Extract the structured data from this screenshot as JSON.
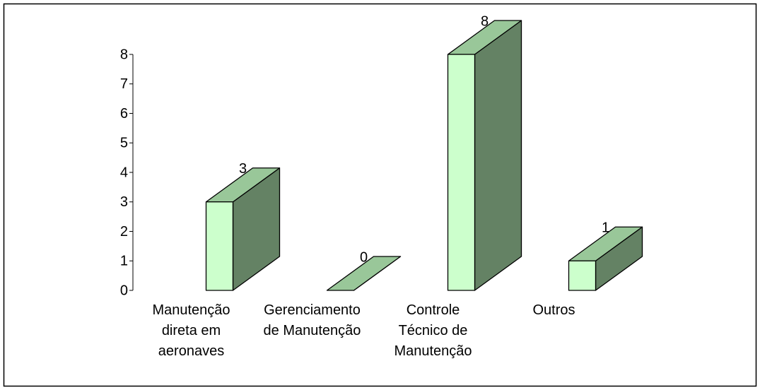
{
  "chart_data": {
    "type": "bar3d",
    "categories": [
      "Manutenção\ndireta em\naeronaves",
      "Gerenciamento\nde Manutenção",
      "Controle\nTécnico de\nManutenção",
      "Outros"
    ],
    "values": [
      3,
      0,
      8,
      1
    ],
    "colors": {
      "front": "#ccffcc",
      "top": "#99c799",
      "side": "#648264"
    },
    "ylim": [
      0,
      8
    ],
    "yticks": [
      0,
      1,
      2,
      3,
      4,
      5,
      6,
      7,
      8
    ]
  }
}
